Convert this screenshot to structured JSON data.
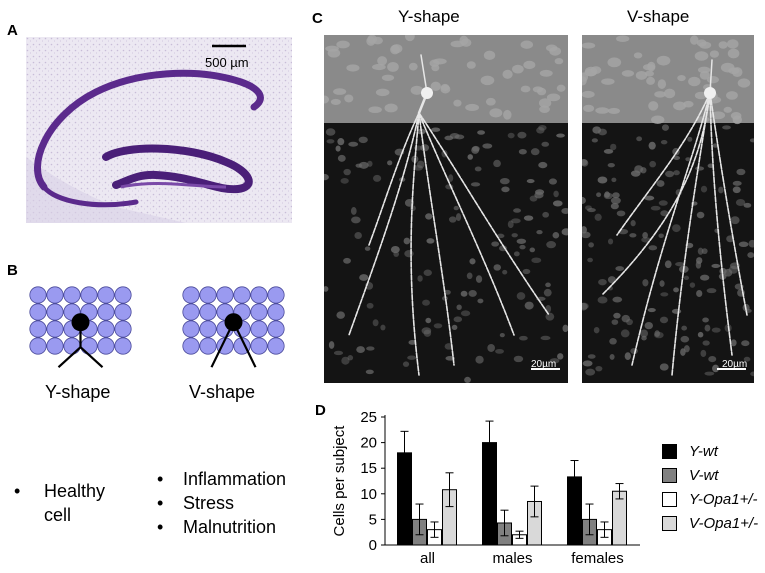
{
  "panels": {
    "a": {
      "letter": "A",
      "scale_label": "500 µm"
    },
    "b": {
      "letter": "B",
      "y_label": "Y-shape",
      "v_label": "V-shape"
    },
    "c": {
      "letter": "C",
      "y_title": "Y-shape",
      "v_title": "V-shape",
      "scale_y": "20µm",
      "scale_v": "20µm"
    },
    "d": {
      "letter": "D"
    }
  },
  "bullets_left": [
    "Healthy",
    "cell"
  ],
  "bullets_right": [
    "Inflammation",
    "Stress",
    "Malnutrition"
  ],
  "colors": {
    "hippocampus": "#5b2a8c",
    "cell_fill": "#9a9af0",
    "tissue_bg": "#141414"
  },
  "chart_data": {
    "type": "bar",
    "ylabel": "Cells per subject",
    "xlabel": "",
    "categories": [
      "all",
      "males",
      "females"
    ],
    "ylim": [
      0,
      25
    ],
    "yticks": [
      0,
      5,
      10,
      15,
      20,
      25
    ],
    "legend_position": "right",
    "series": [
      {
        "name": "Y-wt",
        "color": "#000000",
        "values": [
          18,
          20,
          13.3
        ],
        "errors": [
          4.2,
          4.2,
          3.2
        ]
      },
      {
        "name": "V-wt",
        "color": "#808080",
        "values": [
          5,
          4.3,
          5
        ],
        "errors": [
          3,
          2.5,
          3
        ]
      },
      {
        "name": "Y-Opa1+/-",
        "color": "#ffffff",
        "values": [
          3,
          2,
          3
        ],
        "errors": [
          1.5,
          0.7,
          1.5
        ]
      },
      {
        "name": "V-Opa1+/-",
        "color": "#d9d9d9",
        "values": [
          10.8,
          8.5,
          10.5
        ],
        "errors": [
          3.3,
          3,
          1.5
        ]
      }
    ]
  }
}
